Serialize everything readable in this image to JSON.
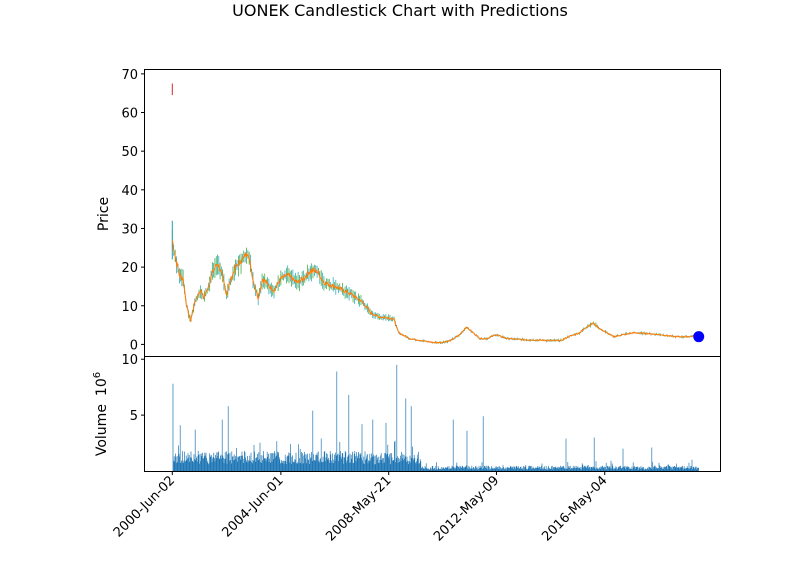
{
  "chart_data": {
    "type": "candlestick",
    "title": "UONEK Candlestick Chart with Predictions",
    "price_panel": {
      "ylabel": "Price",
      "ylim": [
        -3,
        71
      ],
      "yticks": [
        0,
        10,
        20,
        30,
        40,
        50,
        60,
        70
      ],
      "series": [
        {
          "name": "price",
          "color": "#ff7f0e",
          "points": [
            [
              "2000-Jun-02",
              27
            ],
            [
              "2000-Jul-20",
              22
            ],
            [
              "2000-Sep-05",
              18
            ],
            [
              "2000-Oct-25",
              17
            ],
            [
              "2000-Dec-12",
              10
            ],
            [
              "2001-Feb-01",
              6
            ],
            [
              "2001-Apr-01",
              11
            ],
            [
              "2001-Jun-15",
              14
            ],
            [
              "2001-Aug-01",
              12
            ],
            [
              "2001-Oct-01",
              15
            ],
            [
              "2001-Dec-01",
              19
            ],
            [
              "2002-Feb-01",
              21
            ],
            [
              "2002-Apr-01",
              18
            ],
            [
              "2002-Jun-01",
              13
            ],
            [
              "2002-Aug-01",
              17
            ],
            [
              "2002-Oct-01",
              20
            ],
            [
              "2003-Jan-01",
              22
            ],
            [
              "2003-Mar-15",
              24
            ],
            [
              "2003-Jun-01",
              16
            ],
            [
              "2003-Aug-01",
              12
            ],
            [
              "2003-Oct-01",
              17
            ],
            [
              "2004-Jan-01",
              15
            ],
            [
              "2004-Mar-01",
              14
            ],
            [
              "2004-Jun-01",
              17
            ],
            [
              "2004-Sep-01",
              18
            ],
            [
              "2005-Jan-01",
              16
            ],
            [
              "2005-Apr-01",
              17
            ],
            [
              "2005-Jul-01",
              19
            ],
            [
              "2005-Oct-01",
              19
            ],
            [
              "2006-Jan-01",
              16
            ],
            [
              "2006-Jun-01",
              15
            ],
            [
              "2007-Jan-01",
              13
            ],
            [
              "2007-Jun-01",
              11
            ],
            [
              "2007-Oct-01",
              8
            ],
            [
              "2008-Feb-01",
              7
            ],
            [
              "2008-May-01",
              7
            ],
            [
              "2008-Aug-01",
              6.5
            ],
            [
              "2008-Oct-01",
              3
            ],
            [
              "2009-Mar-01",
              1.5
            ],
            [
              "2009-Jun-01",
              1.2
            ],
            [
              "2010-Jan-01",
              0.5
            ],
            [
              "2010-May-01",
              0.5
            ],
            [
              "2010-Sep-01",
              1
            ],
            [
              "2011-Jan-01",
              2.5
            ],
            [
              "2011-Apr-01",
              4.5
            ],
            [
              "2011-Jul-01",
              3
            ],
            [
              "2011-Oct-01",
              1.5
            ],
            [
              "2012-Jan-01",
              1.5
            ],
            [
              "2012-May-01",
              2.5
            ],
            [
              "2012-Oct-01",
              1.5
            ],
            [
              "2013-Jun-01",
              1.2
            ],
            [
              "2014-Jun-01",
              1
            ],
            [
              "2014-Oct-01",
              1
            ],
            [
              "2015-Jan-01",
              2
            ],
            [
              "2015-Jun-01",
              3
            ],
            [
              "2015-Sep-01",
              4.5
            ],
            [
              "2015-Dec-01",
              5.5
            ],
            [
              "2016-Mar-01",
              4
            ],
            [
              "2016-Jun-01",
              3
            ],
            [
              "2016-Sep-01",
              2
            ],
            [
              "2017-Jan-01",
              2.5
            ],
            [
              "2017-Jun-01",
              3
            ],
            [
              "2017-Dec-01",
              2.8
            ],
            [
              "2018-Jun-01",
              2.5
            ],
            [
              "2018-Dec-01",
              2
            ],
            [
              "2019-Jun-01",
              2
            ],
            [
              "2019-Oct-01",
              2.3
            ]
          ]
        }
      ],
      "outlier_wicks": [
        {
          "date": "2000-Jun-02",
          "low": 64.5,
          "high": 67.5,
          "color": "#d62728"
        }
      ],
      "prediction": {
        "date": "2019-Oct-20",
        "value": 2.0,
        "color": "#0000ff"
      }
    },
    "volume_panel": {
      "ylabel": "Volume",
      "yunit": "10",
      "yunit_exp": "6",
      "ylim": [
        0,
        10.2
      ],
      "yticks": [
        5,
        10
      ],
      "color": "#1f77b4"
    },
    "x_axis": {
      "range": [
        "1999-Jun-01",
        "2020-Aug-01"
      ],
      "tick_labels": [
        "2000-Jun-02",
        "2004-Jun-01",
        "2008-May-21",
        "2012-May-09",
        "2016-May-04"
      ]
    }
  }
}
